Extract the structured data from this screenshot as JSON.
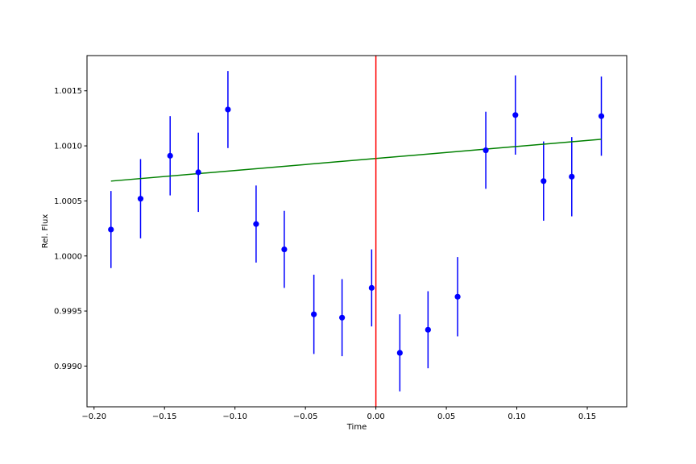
{
  "chart_data": {
    "type": "scatter",
    "title": "",
    "xlabel": "Time",
    "ylabel": "Rel. Flux",
    "xlim": [
      -0.205,
      0.178
    ],
    "ylim": [
      0.99863,
      1.00182
    ],
    "grid": false,
    "x_ticks": [
      -0.2,
      -0.15,
      -0.1,
      -0.05,
      0.0,
      0.05,
      0.1,
      0.15
    ],
    "x_tick_labels": [
      "−0.20",
      "−0.15",
      "−0.10",
      "−0.05",
      "0.00",
      "0.05",
      "0.10",
      "0.15"
    ],
    "y_ticks": [
      0.999,
      0.9995,
      1.0,
      1.0005,
      1.001,
      1.0015
    ],
    "y_tick_labels": [
      "0.9990",
      "0.9995",
      "1.0000",
      "1.0005",
      "1.0010",
      "1.0015"
    ],
    "series": [
      {
        "type": "errorbar",
        "color": "#0000ff",
        "points": [
          {
            "x": -0.188,
            "y": 1.00024,
            "err": 0.00035
          },
          {
            "x": -0.167,
            "y": 1.00052,
            "err": 0.00036
          },
          {
            "x": -0.146,
            "y": 1.00091,
            "err": 0.00036
          },
          {
            "x": -0.126,
            "y": 1.00076,
            "err": 0.00036
          },
          {
            "x": -0.105,
            "y": 1.00133,
            "err": 0.00035
          },
          {
            "x": -0.085,
            "y": 1.00029,
            "err": 0.00035
          },
          {
            "x": -0.065,
            "y": 1.00006,
            "err": 0.00035
          },
          {
            "x": -0.044,
            "y": 0.99947,
            "err": 0.00036
          },
          {
            "x": -0.024,
            "y": 0.99944,
            "err": 0.00035
          },
          {
            "x": -0.003,
            "y": 0.99971,
            "err": 0.00035
          },
          {
            "x": 0.017,
            "y": 0.99912,
            "err": 0.00035
          },
          {
            "x": 0.037,
            "y": 0.99933,
            "err": 0.00035
          },
          {
            "x": 0.058,
            "y": 0.99963,
            "err": 0.00036
          },
          {
            "x": 0.078,
            "y": 1.00096,
            "err": 0.00035
          },
          {
            "x": 0.099,
            "y": 1.00128,
            "err": 0.00036
          },
          {
            "x": 0.119,
            "y": 1.00068,
            "err": 0.00036
          },
          {
            "x": 0.139,
            "y": 1.00072,
            "err": 0.00036
          },
          {
            "x": 0.16,
            "y": 1.00127,
            "err": 0.00036
          }
        ]
      },
      {
        "type": "line",
        "color": "#008000",
        "x": [
          -0.188,
          0.16
        ],
        "y": [
          1.00068,
          1.00106
        ]
      }
    ],
    "vline": {
      "x": 0.0,
      "color": "#ff0000"
    }
  }
}
